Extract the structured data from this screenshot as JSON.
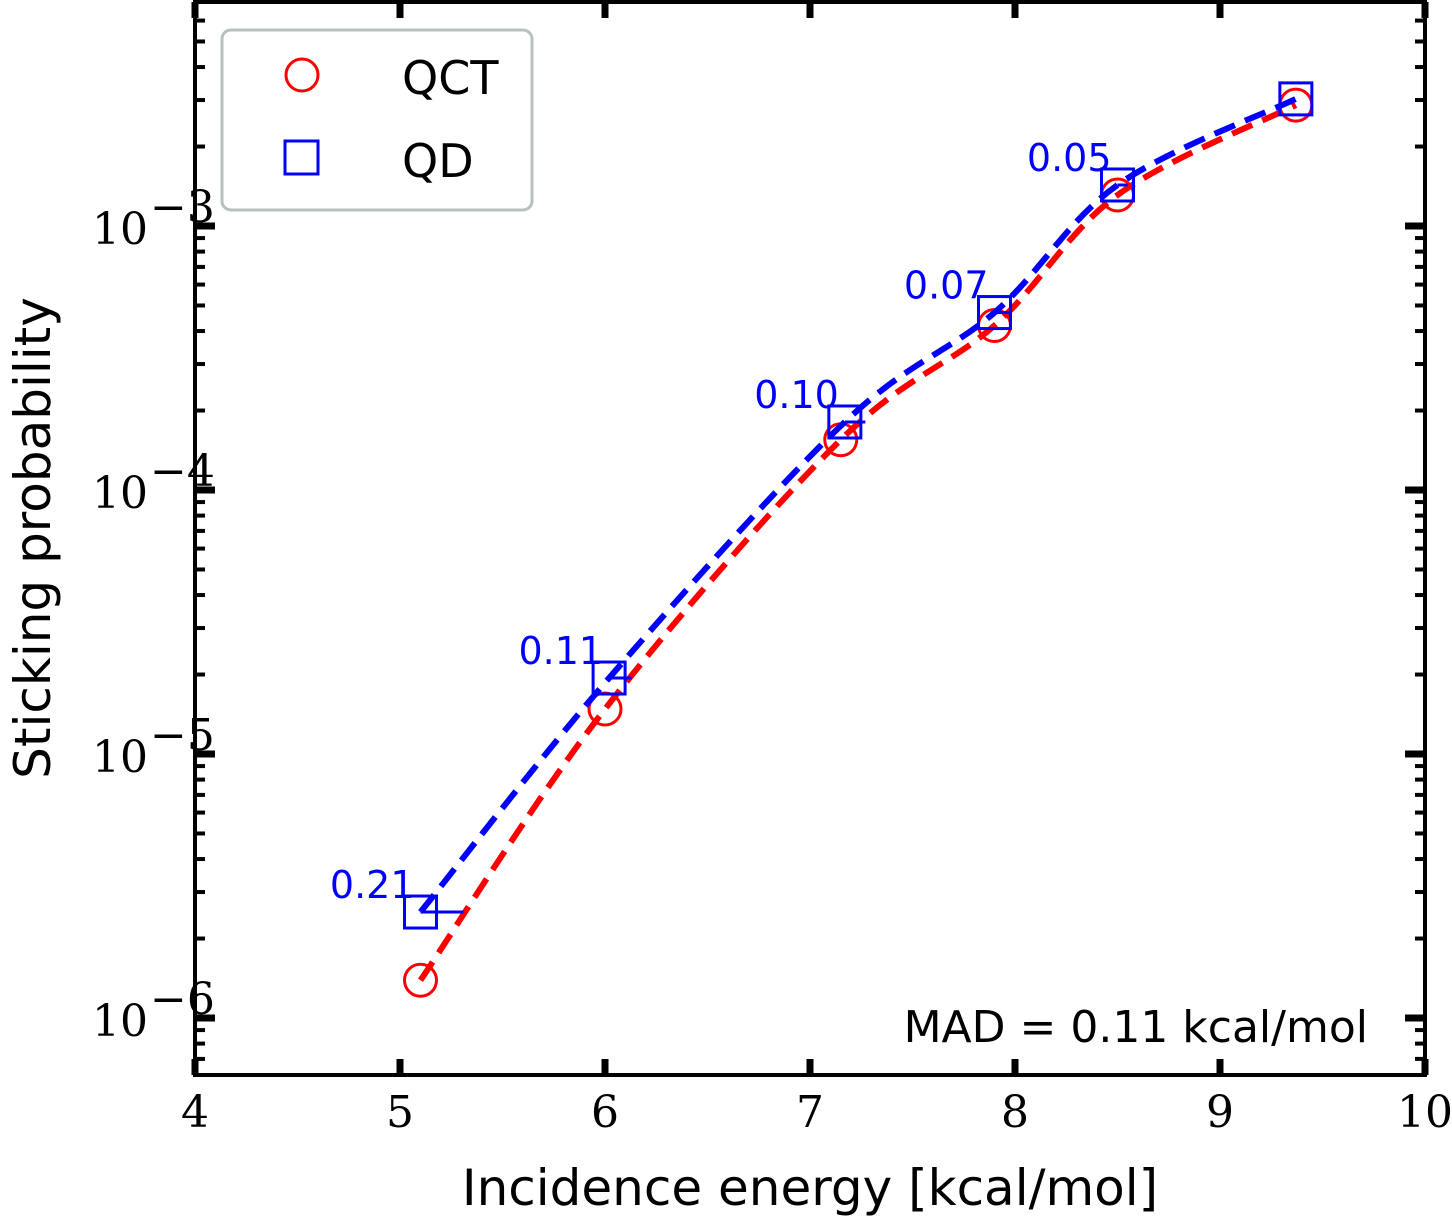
{
  "chart_data": {
    "type": "line",
    "title": "",
    "xlabel": "Incidence energy [kcal/mol]",
    "ylabel": "Sticking probability",
    "xlim": [
      4,
      10
    ],
    "ylim": [
      6.1e-07,
      0.0072
    ],
    "yscale": "log",
    "x_ticks": [
      "4",
      "5",
      "6",
      "7",
      "8",
      "9",
      "10"
    ],
    "y_ticks": [
      {
        "base": "10",
        "exp": "−6",
        "value": 1e-06
      },
      {
        "base": "10",
        "exp": "−5",
        "value": 1e-05
      },
      {
        "base": "10",
        "exp": "−4",
        "value": 0.0001
      },
      {
        "base": "10",
        "exp": "−3",
        "value": 0.001
      }
    ],
    "legend_position": "top-left",
    "series": [
      {
        "name": "QCT",
        "color": "#ff0000",
        "marker": "circle",
        "x": [
          5.1,
          6.0,
          7.15,
          7.9,
          8.5,
          9.37
        ],
        "y": [
          1.39e-06,
          1.48e-05,
          0.000155,
          0.00042,
          0.00131,
          0.00287
        ]
      },
      {
        "name": "QD",
        "color": "#0000ff",
        "marker": "square",
        "x": [
          5.1,
          6.02,
          7.17,
          7.9,
          8.5,
          9.37
        ],
        "y": [
          2.52e-06,
          1.94e-05,
          0.000181,
          0.00047,
          0.00143,
          0.00303
        ]
      }
    ],
    "annotations": [
      "0.21",
      "0.11",
      "0.10",
      "0.07",
      "0.05"
    ],
    "shifts": [
      0.21,
      0.11,
      0.1,
      0.07,
      0.05
    ],
    "mad_text": "MAD = 0.11 kcal/mol"
  }
}
